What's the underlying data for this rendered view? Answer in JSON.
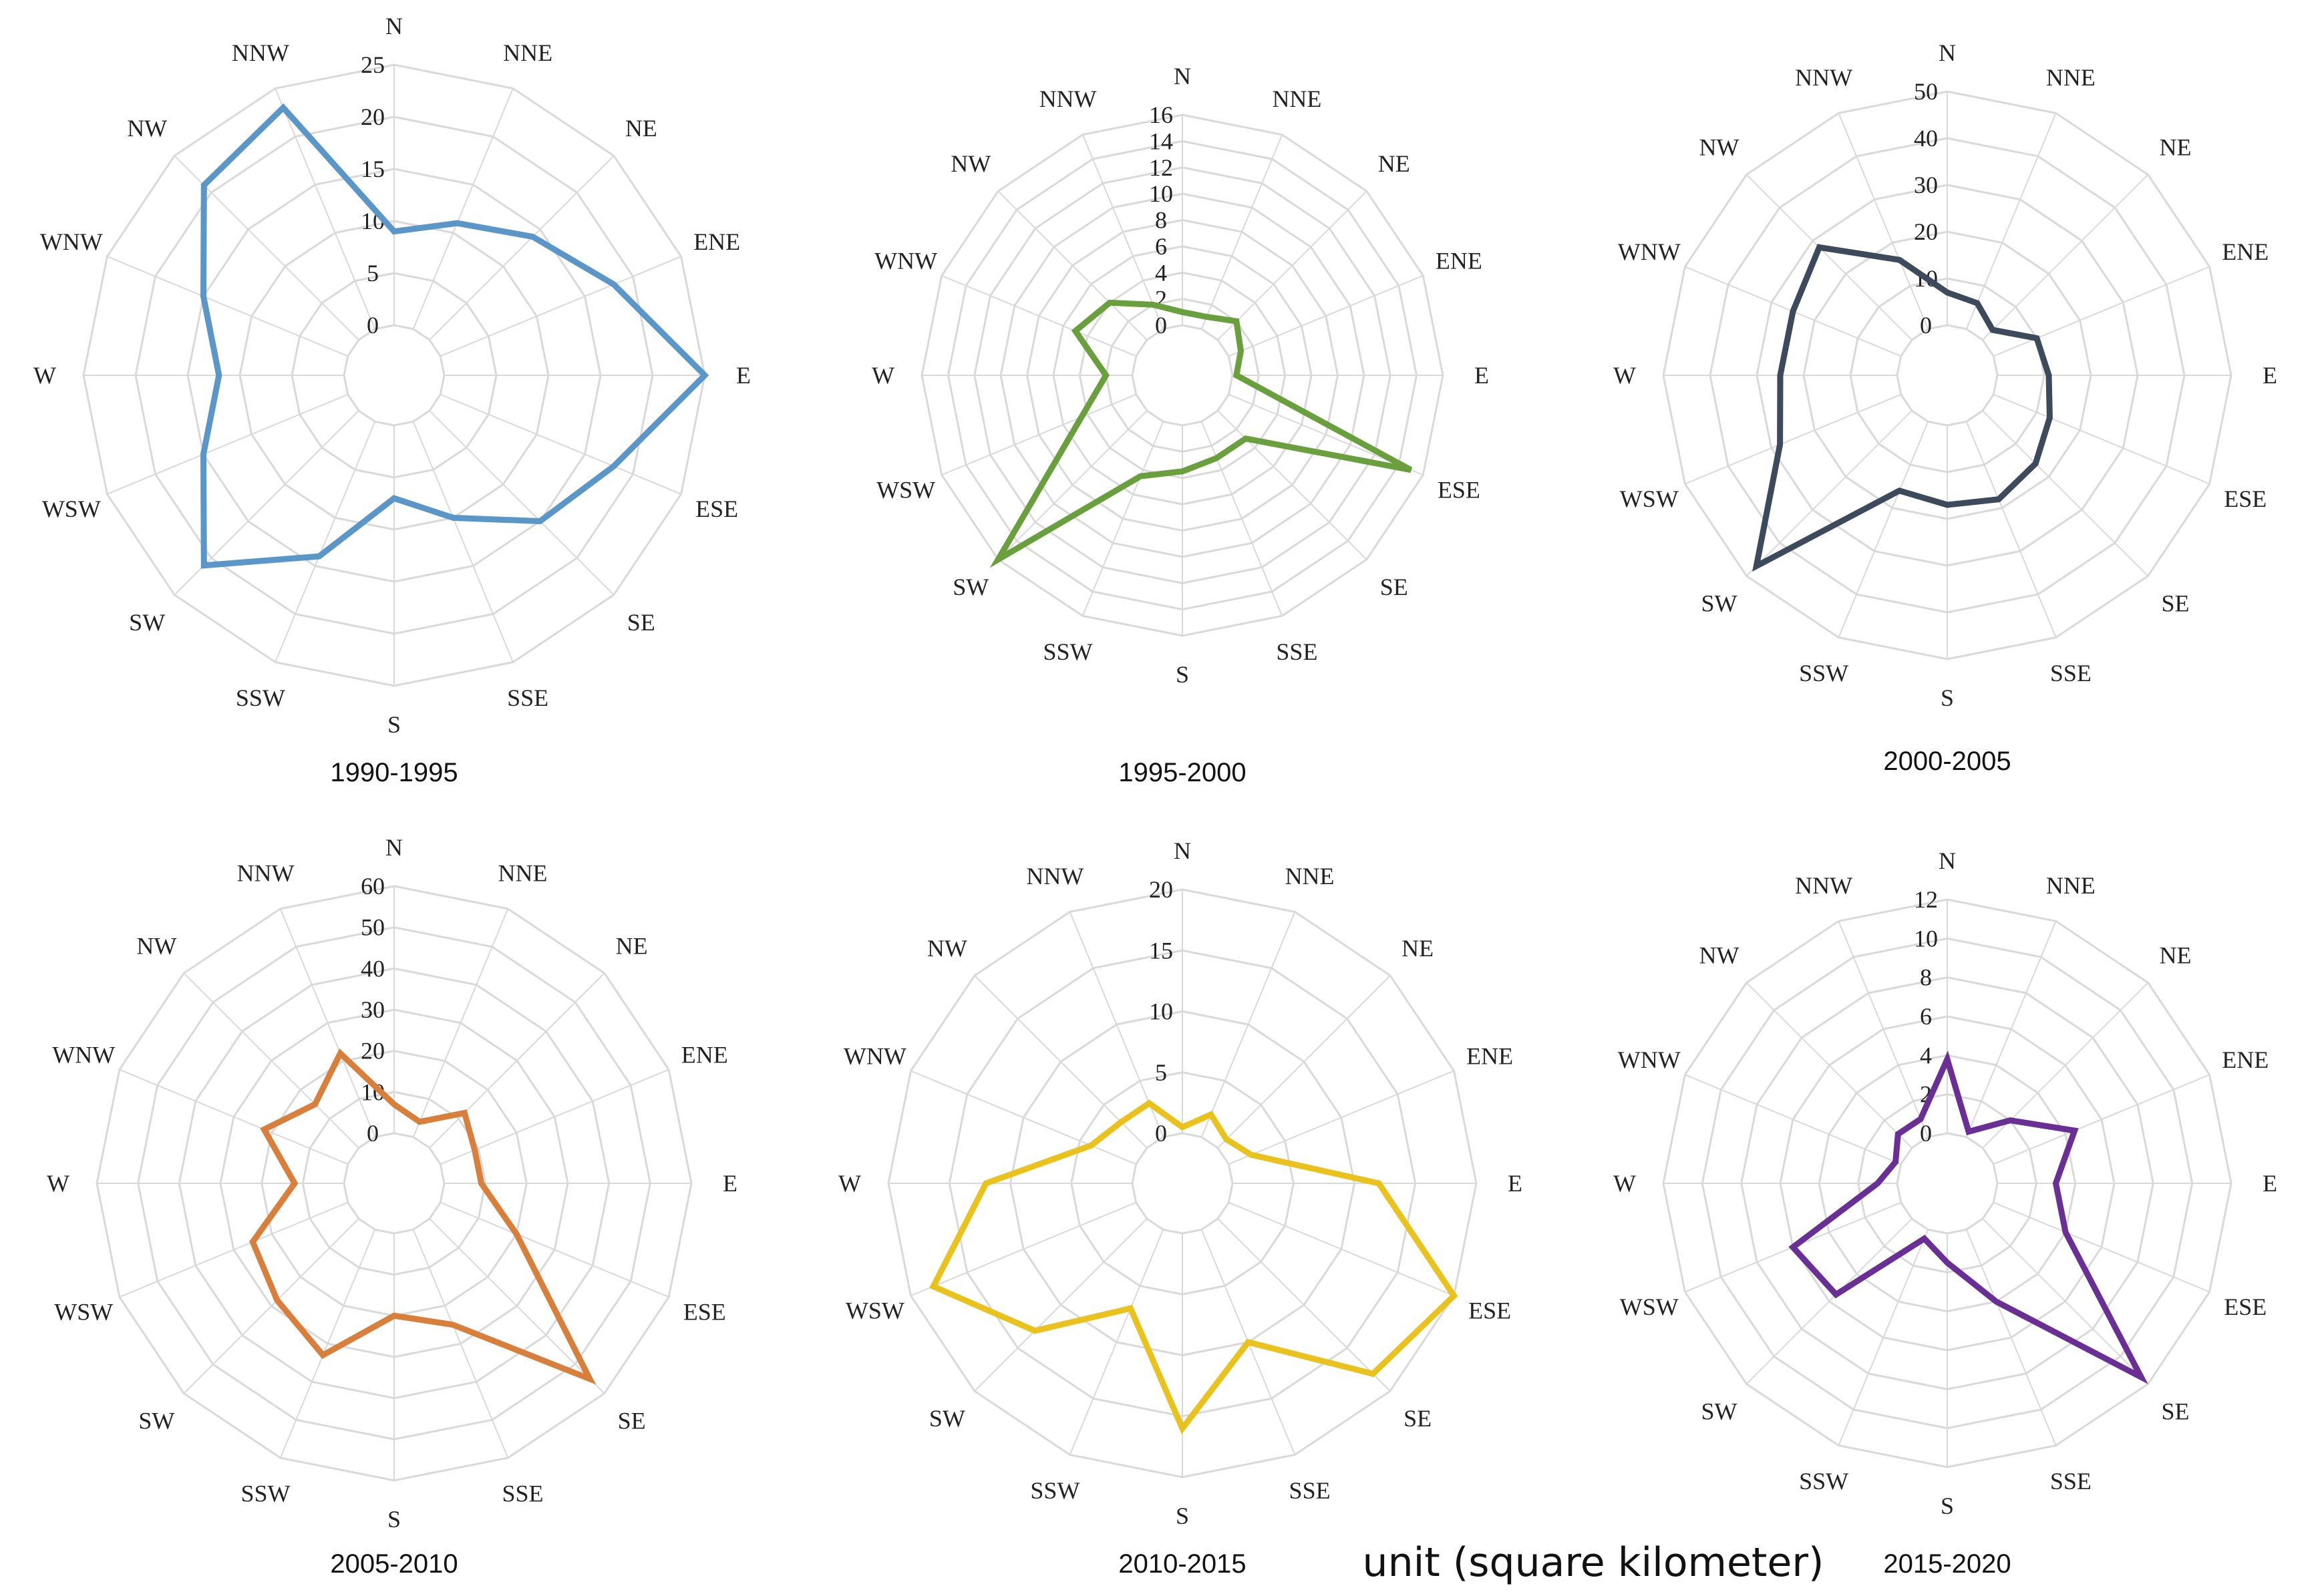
{
  "directions": [
    "N",
    "NNE",
    "NE",
    "ENE",
    "E",
    "ESE",
    "SE",
    "SSE",
    "S",
    "SSW",
    "SW",
    "WSW",
    "W",
    "WNW",
    "NW",
    "NNW"
  ],
  "unit_label": "unit (square kilometer)",
  "chart_data": [
    {
      "type": "radar",
      "title": "1990-1995",
      "color": "#5b96c8",
      "ylim": [
        0,
        25
      ],
      "ticks": [
        0,
        5,
        10,
        15,
        20,
        25
      ],
      "tick_labels": [
        "0",
        "5",
        "10",
        "15",
        "20",
        "25"
      ],
      "categories": [
        "N",
        "NNE",
        "NE",
        "ENE",
        "E",
        "ESE",
        "SE",
        "SSE",
        "S",
        "SSW",
        "SW",
        "WSW",
        "W",
        "WNW",
        "NW",
        "NNW"
      ],
      "values": [
        9,
        11,
        14,
        18,
        25,
        18,
        15,
        10,
        7,
        14,
        21,
        15,
        12,
        15,
        21,
        23
      ]
    },
    {
      "type": "radar",
      "title": "1995-2000",
      "color": "#6a9f3d",
      "ylim": [
        0,
        16
      ],
      "ticks": [
        0,
        2,
        4,
        6,
        8,
        10,
        12,
        14,
        16
      ],
      "tick_labels": [
        "0",
        "2",
        "4",
        "6",
        "8",
        "10",
        "12",
        "14",
        "16"
      ],
      "categories": [
        "N",
        "NNE",
        "NE",
        "ENE",
        "E",
        "ESE",
        "SE",
        "SSE",
        "S",
        "SSW",
        "SW",
        "WSW",
        "W",
        "WNW",
        "NW",
        "NNW"
      ],
      "values": [
        1,
        1,
        2,
        1,
        0.3,
        15,
        3,
        3,
        3.5,
        4.5,
        16,
        4.5,
        2,
        5,
        4,
        2
      ]
    },
    {
      "type": "radar",
      "title": "2000-2005",
      "color": "#3d4a5c",
      "ylim": [
        0,
        50
      ],
      "ticks": [
        0,
        10,
        20,
        30,
        40,
        50
      ],
      "tick_labels": [
        "0",
        "10",
        "20",
        "30",
        "40",
        "50"
      ],
      "categories": [
        "N",
        "NNE",
        "NE",
        "ENE",
        "E",
        "ESE",
        "SE",
        "SSE",
        "S",
        "SSW",
        "SW",
        "WSW",
        "W",
        "WNW",
        "NW",
        "NNW"
      ],
      "values": [
        7,
        6,
        3,
        10,
        11,
        13,
        16,
        18,
        17,
        16,
        47,
        28,
        25,
        25,
        28,
        16
      ]
    },
    {
      "type": "radar",
      "title": "2005-2010",
      "color": "#d87f3c",
      "ylim": [
        0,
        60
      ],
      "ticks": [
        0,
        10,
        20,
        30,
        40,
        50,
        60
      ],
      "tick_labels": [
        "0",
        "10",
        "20",
        "30",
        "40",
        "50",
        "60"
      ],
      "categories": [
        "N",
        "NNE",
        "NE",
        "ENE",
        "E",
        "ESE",
        "SE",
        "SSE",
        "S",
        "SSW",
        "SW",
        "WSW",
        "W",
        "WNW",
        "NW",
        "NNW"
      ],
      "values": [
        7,
        4,
        12,
        9,
        9,
        20,
        55,
        25,
        20,
        33,
        28,
        25,
        12,
        22,
        15,
        22
      ]
    },
    {
      "type": "radar",
      "title": "2010-2015",
      "color": "#eac21d",
      "ylim": [
        0,
        20
      ],
      "ticks": [
        0,
        5,
        10,
        15,
        20
      ],
      "tick_labels": [
        "0",
        "5",
        "10",
        "15",
        "20"
      ],
      "categories": [
        "N",
        "NNE",
        "NE",
        "ENE",
        "E",
        "ESE",
        "SE",
        "SSE",
        "S",
        "SSW",
        "SW",
        "WSW",
        "W",
        "WNW",
        "NW",
        "NNW"
      ],
      "values": [
        0.5,
        2,
        1,
        2,
        12,
        20,
        18,
        10,
        16,
        7,
        13,
        18,
        12,
        4,
        3,
        3
      ]
    },
    {
      "type": "radar",
      "title": "2015-2020",
      "color": "#6a2f95",
      "ylim": [
        0,
        12
      ],
      "ticks": [
        0,
        2,
        4,
        6,
        8,
        10,
        12
      ],
      "tick_labels": [
        "0",
        "2",
        "4",
        "6",
        "8",
        "10",
        "12"
      ],
      "categories": [
        "N",
        "NNE",
        "NE",
        "ENE",
        "E",
        "ESE",
        "SE",
        "SSE",
        "S",
        "SSW",
        "SW",
        "WSW",
        "W",
        "WNW",
        "NW",
        "NNW"
      ],
      "values": [
        3.8,
        0.3,
        2,
        4.5,
        3,
        4,
        11.5,
        4,
        1.5,
        0.5,
        5.5,
        6,
        1,
        0.3,
        1,
        1
      ]
    }
  ]
}
